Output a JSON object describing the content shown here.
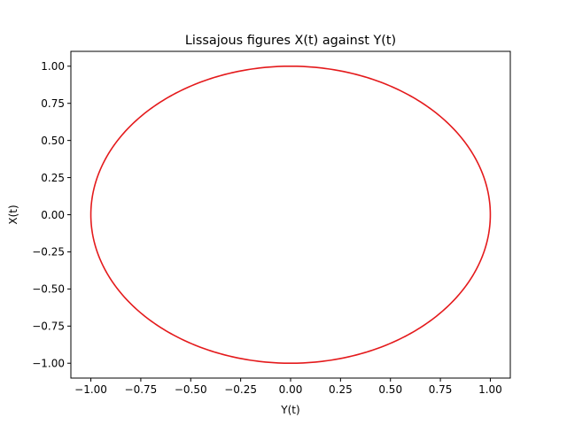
{
  "chart_data": {
    "type": "line",
    "title": "Lissajous figures X(t) against Y(t)",
    "xlabel": "Y(t)",
    "ylabel": "X(t)",
    "xlim": [
      -1.1,
      1.1
    ],
    "ylim": [
      -1.1,
      1.1
    ],
    "xticks": [
      -1.0,
      -0.75,
      -0.5,
      -0.25,
      0.0,
      0.25,
      0.5,
      0.75,
      1.0
    ],
    "yticks": [
      -1.0,
      -0.75,
      -0.5,
      -0.25,
      0.0,
      0.25,
      0.5,
      0.75,
      1.0
    ],
    "xtick_labels": [
      "−1.00",
      "−0.75",
      "−0.50",
      "−0.25",
      "0.00",
      "0.25",
      "0.50",
      "0.75",
      "1.00"
    ],
    "ytick_labels": [
      "−1.00",
      "−0.75",
      "−0.50",
      "−0.25",
      "0.00",
      "0.25",
      "0.50",
      "0.75",
      "1.00"
    ],
    "grid": false,
    "series": [
      {
        "color": "#e41a1c",
        "curve": "x = sin(t), y = cos(t), t in [0, 2pi]",
        "x_amplitude": 1.0,
        "y_amplitude": 1.0
      }
    ]
  }
}
